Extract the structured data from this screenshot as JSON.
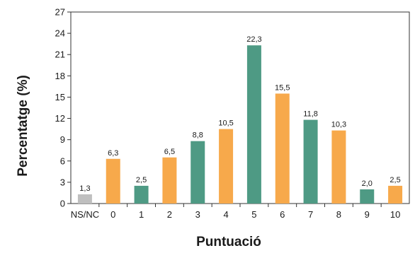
{
  "chart_data": {
    "type": "bar",
    "categories": [
      "NS/NC",
      "0",
      "1",
      "2",
      "3",
      "4",
      "5",
      "6",
      "7",
      "8",
      "9",
      "10"
    ],
    "values": [
      1.3,
      6.3,
      2.5,
      6.5,
      8.8,
      10.5,
      22.3,
      15.5,
      11.8,
      10.3,
      2.0,
      2.5
    ],
    "value_labels": [
      "1,3",
      "6,3",
      "2,5",
      "6,5",
      "8,8",
      "10,5",
      "22,3",
      "15,5",
      "11,8",
      "10,3",
      "2,0",
      "2,5"
    ],
    "bar_colors": [
      "#bfbfbf",
      "#f7a94b",
      "#4e9a84",
      "#f7a94b",
      "#4e9a84",
      "#f7a94b",
      "#4e9a84",
      "#f7a94b",
      "#4e9a84",
      "#f7a94b",
      "#4e9a84",
      "#f7a94b"
    ],
    "title": "",
    "xlabel": "Puntuació",
    "ylabel": "Percentatge (%)",
    "ylim": [
      0,
      27
    ],
    "yticks": [
      0,
      3,
      6,
      9,
      12,
      15,
      18,
      21,
      24,
      27
    ],
    "grid": false
  }
}
